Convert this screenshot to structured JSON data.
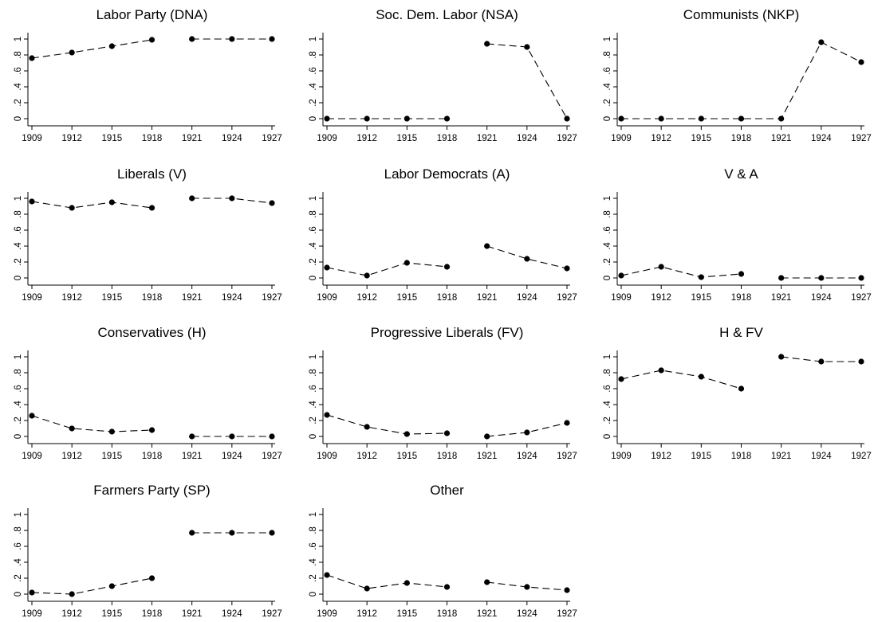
{
  "chart_data": [
    {
      "type": "line",
      "title": "Labor Party (DNA)",
      "categories": [
        "1909",
        "1912",
        "1915",
        "1918",
        "1921",
        "1924",
        "1927"
      ],
      "values": [
        0.76,
        0.83,
        0.91,
        0.99,
        1.0,
        1.0,
        1.0
      ],
      "breaks": [
        4
      ],
      "ylim": [
        0,
        1
      ],
      "yticks": [
        "0",
        ".2",
        ".4",
        ".6",
        ".8",
        "1"
      ],
      "grid": false
    },
    {
      "type": "line",
      "title": "Soc. Dem. Labor (NSA)",
      "categories": [
        "1909",
        "1912",
        "1915",
        "1918",
        "1921",
        "1924",
        "1927"
      ],
      "values": [
        0,
        0,
        0,
        0,
        0.94,
        0.9,
        0
      ],
      "breaks": [
        4
      ],
      "ylim": [
        0,
        1
      ],
      "yticks": [
        "0",
        ".2",
        ".4",
        ".6",
        ".8",
        "1"
      ],
      "grid": false
    },
    {
      "type": "line",
      "title": "Communists (NKP)",
      "categories": [
        "1909",
        "1912",
        "1915",
        "1918",
        "1921",
        "1924",
        "1927"
      ],
      "values": [
        0,
        0,
        0,
        0,
        0,
        0.96,
        0.71
      ],
      "breaks": [],
      "ylim": [
        0,
        1
      ],
      "yticks": [
        "0",
        ".2",
        ".4",
        ".6",
        ".8",
        "1"
      ],
      "grid": false
    },
    {
      "type": "line",
      "title": "Liberals (V)",
      "categories": [
        "1909",
        "1912",
        "1915",
        "1918",
        "1921",
        "1924",
        "1927"
      ],
      "values": [
        0.96,
        0.88,
        0.95,
        0.88,
        1.0,
        1.0,
        0.94
      ],
      "breaks": [
        4
      ],
      "ylim": [
        0,
        1
      ],
      "yticks": [
        "0",
        ".2",
        ".4",
        ".6",
        ".8",
        "1"
      ],
      "grid": false
    },
    {
      "type": "line",
      "title": "Labor Democrats (A)",
      "categories": [
        "1909",
        "1912",
        "1915",
        "1918",
        "1921",
        "1924",
        "1927"
      ],
      "values": [
        0.13,
        0.03,
        0.19,
        0.14,
        0.4,
        0.24,
        0.12
      ],
      "breaks": [
        4
      ],
      "ylim": [
        0,
        1
      ],
      "yticks": [
        "0",
        ".2",
        ".4",
        ".6",
        ".8",
        "1"
      ],
      "grid": false
    },
    {
      "type": "line",
      "title": "V & A",
      "categories": [
        "1909",
        "1912",
        "1915",
        "1918",
        "1921",
        "1924",
        "1927"
      ],
      "values": [
        0.03,
        0.14,
        0.01,
        0.05,
        0,
        0,
        0
      ],
      "breaks": [
        4
      ],
      "ylim": [
        0,
        1
      ],
      "yticks": [
        "0",
        ".2",
        ".4",
        ".6",
        ".8",
        "1"
      ],
      "grid": false
    },
    {
      "type": "line",
      "title": "Conservatives (H)",
      "categories": [
        "1909",
        "1912",
        "1915",
        "1918",
        "1921",
        "1924",
        "1927"
      ],
      "values": [
        0.26,
        0.1,
        0.06,
        0.08,
        0,
        0,
        0
      ],
      "breaks": [
        4
      ],
      "ylim": [
        0,
        1
      ],
      "yticks": [
        "0",
        ".2",
        ".4",
        ".6",
        ".8",
        "1"
      ],
      "grid": false
    },
    {
      "type": "line",
      "title": "Progressive Liberals (FV)",
      "categories": [
        "1909",
        "1912",
        "1915",
        "1918",
        "1921",
        "1924",
        "1927"
      ],
      "values": [
        0.27,
        0.12,
        0.03,
        0.04,
        0,
        0.05,
        0.17
      ],
      "breaks": [
        4
      ],
      "ylim": [
        0,
        1
      ],
      "yticks": [
        "0",
        ".2",
        ".4",
        ".6",
        ".8",
        "1"
      ],
      "grid": false
    },
    {
      "type": "line",
      "title": "H & FV",
      "categories": [
        "1909",
        "1912",
        "1915",
        "1918",
        "1921",
        "1924",
        "1927"
      ],
      "values": [
        0.72,
        0.83,
        0.75,
        0.6,
        1.0,
        0.94,
        0.94
      ],
      "breaks": [
        4
      ],
      "ylim": [
        0,
        1
      ],
      "yticks": [
        "0",
        ".2",
        ".4",
        ".6",
        ".8",
        "1"
      ],
      "grid": false
    },
    {
      "type": "line",
      "title": "Farmers Party (SP)",
      "categories": [
        "1909",
        "1912",
        "1915",
        "1918",
        "1921",
        "1924",
        "1927"
      ],
      "values": [
        0.02,
        0.0,
        0.1,
        0.2,
        0.77,
        0.77,
        0.77
      ],
      "breaks": [
        4
      ],
      "ylim": [
        0,
        1
      ],
      "yticks": [
        "0",
        ".2",
        ".4",
        ".6",
        ".8",
        "1"
      ],
      "grid": false
    },
    {
      "type": "line",
      "title": "Other",
      "categories": [
        "1909",
        "1912",
        "1915",
        "1918",
        "1921",
        "1924",
        "1927"
      ],
      "values": [
        0.24,
        0.07,
        0.14,
        0.09,
        0.15,
        0.09,
        0.05
      ],
      "breaks": [
        4
      ],
      "ylim": [
        0,
        1
      ],
      "yticks": [
        "0",
        ".2",
        ".4",
        ".6",
        ".8",
        "1"
      ],
      "grid": false
    }
  ]
}
